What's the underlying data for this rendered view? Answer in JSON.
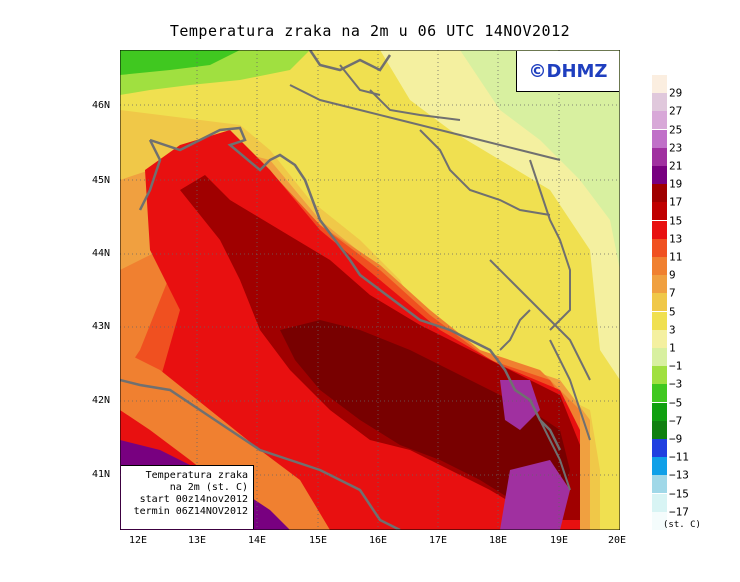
{
  "title": "Temperatura zraka na 2m u 06 UTC 14NOV2012",
  "logo": "©DHMZ",
  "info_box": [
    "Temperatura zraka",
    "na 2m (st. C)",
    "start 00z14nov2012",
    "termin 06Z14NOV2012"
  ],
  "lat_labels": [
    "46N",
    "45N",
    "44N",
    "43N",
    "42N",
    "41N"
  ],
  "lon_labels": [
    "12E",
    "13E",
    "14E",
    "15E",
    "16E",
    "17E",
    "18E",
    "19E",
    "20E"
  ],
  "legend": {
    "unit": "(st. C)",
    "labels": [
      "29",
      "27",
      "25",
      "23",
      "21",
      "19",
      "17",
      "15",
      "13",
      "11",
      "9",
      "7",
      "5",
      "3",
      "1",
      "−1",
      "−3",
      "−5",
      "−7",
      "−9",
      "−11",
      "−13",
      "−15",
      "−17"
    ],
    "colors": [
      "#fbeee0",
      "#e0c8dc",
      "#d8a8d8",
      "#c070c8",
      "#a030a0",
      "#780080",
      "#a00000",
      "#c00000",
      "#e81010",
      "#f05020",
      "#f08030",
      "#f0a040",
      "#f0c848",
      "#f0e050",
      "#f4f0a0",
      "#d8f0a0",
      "#a0e040",
      "#40c820",
      "#10a010",
      "#108010",
      "#2040e0",
      "#10a0e8",
      "#a0d8e8",
      "#d8f4f4",
      "#f4fcfc"
    ]
  }
}
